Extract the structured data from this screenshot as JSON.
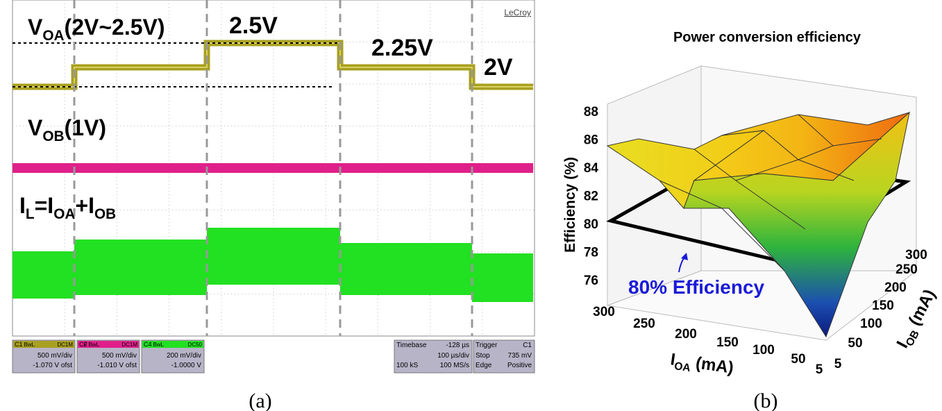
{
  "panel_a": {
    "brand": "LeCroy",
    "voa_label": [
      {
        "text": "V"
      },
      {
        "sub": "OA"
      },
      {
        "text": "(2V~2.5V)"
      }
    ],
    "level_labels": [
      "2.5V",
      "2.25V",
      "2V"
    ],
    "vob_label": [
      {
        "text": "V"
      },
      {
        "sub": "OB"
      },
      {
        "text": "(1V)"
      }
    ],
    "il_label": [
      {
        "text": "I"
      },
      {
        "sub": "L"
      },
      {
        "text": "=I"
      },
      {
        "sub": "OA"
      },
      {
        "text": "+I"
      },
      {
        "sub": "OB"
      }
    ],
    "channels": [
      {
        "name": "C1",
        "bw": "BwL",
        "coupling": "DC1M",
        "scale": "500 mV/div",
        "offset": "-1.070 V ofst"
      },
      {
        "name": "C2",
        "bw": "F BwL",
        "coupling": "DC1M",
        "scale": "500 mV/div",
        "offset": "-1.010 V ofst"
      },
      {
        "name": "C4",
        "bw": "BwL",
        "coupling": "DC50",
        "scale": "200 mV/div",
        "offset": "-1.0000 V"
      }
    ],
    "timebase": {
      "label": "Timebase",
      "delay": "-128 µs",
      "scale": "100 µs/div",
      "samples": "100 kS",
      "rate": "100 MS/s"
    },
    "trigger": {
      "label": "Trigger",
      "source": "C1",
      "mode": "Stop",
      "level": "735 mV",
      "type": "Edge",
      "slope": "Positive"
    },
    "caption": "(a)"
  },
  "panel_b": {
    "title": "Power conversion efficiency",
    "z_label": "Efficiency (%)",
    "z_ticks": [
      "88",
      "86",
      "84",
      "82",
      "80",
      "78",
      "76"
    ],
    "ioa_label": [
      {
        "text": "I"
      },
      {
        "sub": "OA"
      },
      {
        "text": " (mA)"
      }
    ],
    "ioa_ticks": [
      "300",
      "250",
      "200",
      "150",
      "100",
      "50",
      "5"
    ],
    "iob_label": [
      {
        "text": "I"
      },
      {
        "sub": "OB"
      },
      {
        "text": " (mA)"
      }
    ],
    "iob_ticks": [
      "5",
      "50",
      "100",
      "150",
      "200",
      "250",
      "300"
    ],
    "annotation": "80% Efficiency",
    "caption": "(b)"
  }
}
